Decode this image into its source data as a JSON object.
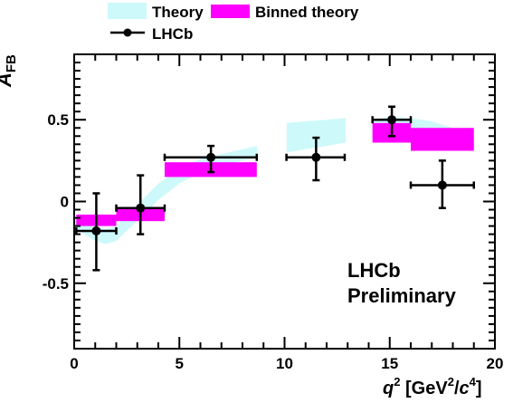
{
  "chart_data": {
    "type": "scatter",
    "ylabel": "A",
    "ylabel_sub": "FB",
    "xlabel_parts": {
      "q": "q",
      "q_sup": "2",
      "open": " [GeV",
      "gev_sup": "2",
      "slash": "/",
      "c": "c",
      "c_sup": "4",
      "close": "]"
    },
    "xlim": [
      0,
      20
    ],
    "ylim": [
      -0.9,
      0.9
    ],
    "x_ticks": [
      {
        "value": 0,
        "label": "0"
      },
      {
        "value": 5,
        "label": "5"
      },
      {
        "value": 10,
        "label": "10"
      },
      {
        "value": 15,
        "label": "15"
      },
      {
        "value": 20,
        "label": "20"
      }
    ],
    "y_ticks": [
      {
        "value": -0.5,
        "label": "-0.5"
      },
      {
        "value": 0,
        "label": "0"
      },
      {
        "value": 0.5,
        "label": "0.5"
      }
    ],
    "legend": {
      "theory": "Theory",
      "binned": "Binned theory",
      "data": "LHCb"
    },
    "annotation": [
      "LHCb",
      "Preliminary"
    ],
    "colors": {
      "theory": "#cdf9fb",
      "binned": "#ff00ff",
      "data": "#000000"
    },
    "theory_band": [
      {
        "x": 0.0,
        "lo": -0.16,
        "hi": -0.1
      },
      {
        "x": 1.0,
        "lo": -0.24,
        "hi": -0.15
      },
      {
        "x": 1.5,
        "lo": -0.26,
        "hi": -0.17
      },
      {
        "x": 2.0,
        "lo": -0.24,
        "hi": -0.15
      },
      {
        "x": 3.0,
        "lo": -0.12,
        "hi": -0.02
      },
      {
        "x": 4.0,
        "lo": 0.01,
        "hi": 0.11
      },
      {
        "x": 5.0,
        "lo": 0.11,
        "hi": 0.2
      },
      {
        "x": 6.0,
        "lo": 0.18,
        "hi": 0.26
      },
      {
        "x": 7.0,
        "lo": 0.22,
        "hi": 0.29
      },
      {
        "x": 8.0,
        "lo": 0.25,
        "hi": 0.32
      },
      {
        "x": 8.7,
        "lo": 0.27,
        "hi": 0.34
      },
      {
        "x": 10.1,
        "lo": 0.3,
        "hi": 0.48
      },
      {
        "x": 11.0,
        "lo": 0.32,
        "hi": 0.49
      },
      {
        "x": 12.0,
        "lo": 0.34,
        "hi": 0.5
      },
      {
        "x": 12.9,
        "lo": 0.36,
        "hi": 0.51
      },
      {
        "x": 14.2,
        "lo": 0.4,
        "hi": 0.5
      },
      {
        "x": 15.0,
        "lo": 0.41,
        "hi": 0.52
      },
      {
        "x": 16.0,
        "lo": 0.4,
        "hi": 0.51
      },
      {
        "x": 17.0,
        "lo": 0.37,
        "hi": 0.49
      },
      {
        "x": 18.0,
        "lo": 0.34,
        "hi": 0.45
      },
      {
        "x": 19.0,
        "lo": 0.31,
        "hi": 0.4
      }
    ],
    "binned_theory": [
      {
        "x0": 0.1,
        "x1": 2.0,
        "y0": -0.15,
        "y1": -0.08
      },
      {
        "x0": 2.0,
        "x1": 4.3,
        "y0": -0.12,
        "y1": -0.04
      },
      {
        "x0": 4.3,
        "x1": 8.68,
        "y0": 0.15,
        "y1": 0.24
      },
      {
        "x0": 14.18,
        "x1": 16.0,
        "y0": 0.36,
        "y1": 0.48
      },
      {
        "x0": 16.0,
        "x1": 19.0,
        "y0": 0.31,
        "y1": 0.45
      }
    ],
    "data_points": [
      {
        "x": 1.05,
        "y": -0.18,
        "xlo": 0.1,
        "xhi": 2.0,
        "ylo": -0.42,
        "yhi": 0.05
      },
      {
        "x": 3.15,
        "y": -0.04,
        "xlo": 2.0,
        "xhi": 4.3,
        "ylo": -0.2,
        "yhi": 0.16
      },
      {
        "x": 6.5,
        "y": 0.27,
        "xlo": 4.3,
        "xhi": 8.68,
        "ylo": 0.18,
        "yhi": 0.34
      },
      {
        "x": 11.5,
        "y": 0.27,
        "xlo": 10.09,
        "xhi": 12.86,
        "ylo": 0.13,
        "yhi": 0.39
      },
      {
        "x": 15.1,
        "y": 0.5,
        "xlo": 14.18,
        "xhi": 16.0,
        "ylo": 0.4,
        "yhi": 0.58
      },
      {
        "x": 17.5,
        "y": 0.1,
        "xlo": 16.0,
        "xhi": 19.0,
        "ylo": -0.04,
        "yhi": 0.25
      }
    ]
  }
}
